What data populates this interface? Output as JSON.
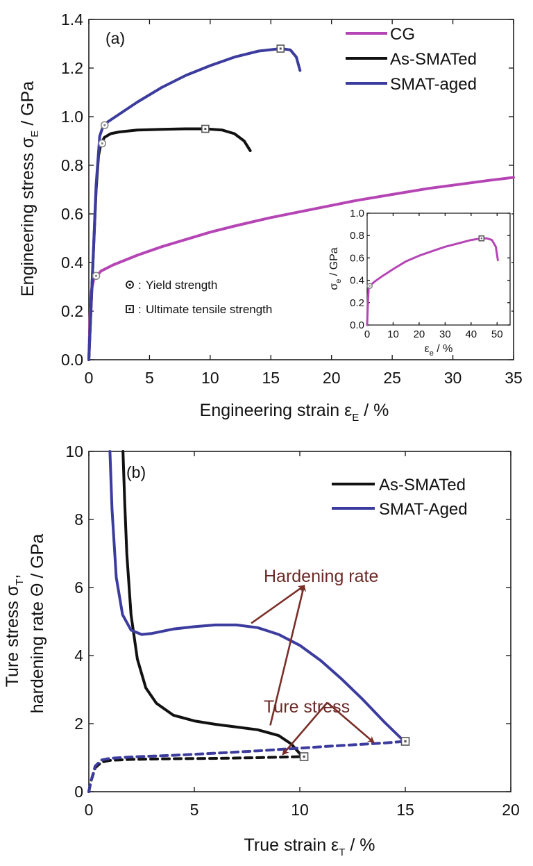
{
  "chart_data": [
    {
      "panel": "(a)",
      "type": "line",
      "xlabel": "Engineering strain ε",
      "xlabel_sub": "E",
      "xlabel_unit": " / %",
      "ylabel": "Engineering stress σ",
      "ylabel_sub": "E",
      "ylabel_unit": " / GPa",
      "xlim": [
        0,
        35
      ],
      "ylim": [
        0,
        1.4
      ],
      "xticks": [
        "0",
        "5",
        "10",
        "15",
        "20",
        "25",
        "30",
        "35"
      ],
      "yticks": [
        "0.0",
        "0.2",
        "0.4",
        "0.6",
        "0.8",
        "1.0",
        "1.2",
        "1.4"
      ],
      "legend_position": "top-right",
      "series": [
        {
          "name": "CG",
          "color": "#b545b5",
          "x": [
            0,
            0.1,
            0.2,
            0.4,
            1,
            2,
            4,
            6,
            8,
            10,
            12,
            15,
            18,
            20,
            22,
            25,
            28,
            30,
            33,
            35
          ],
          "y": [
            0,
            0.18,
            0.28,
            0.33,
            0.365,
            0.39,
            0.43,
            0.465,
            0.495,
            0.525,
            0.55,
            0.585,
            0.615,
            0.635,
            0.655,
            0.68,
            0.705,
            0.718,
            0.738,
            0.75
          ]
        },
        {
          "name": "As-SMATed",
          "color": "#111111",
          "x": [
            0,
            0.3,
            0.6,
            0.8,
            1.0,
            1.3,
            1.8,
            2.5,
            4,
            6,
            8,
            9.6,
            11,
            12,
            12.8,
            13.3
          ],
          "y": [
            0,
            0.35,
            0.7,
            0.84,
            0.89,
            0.915,
            0.93,
            0.937,
            0.945,
            0.948,
            0.95,
            0.95,
            0.945,
            0.93,
            0.9,
            0.86
          ]
        },
        {
          "name": "SMAT-aged",
          "color": "#3c3c9e",
          "x": [
            0,
            0.3,
            0.6,
            0.9,
            1.2,
            1.6,
            2.5,
            4,
            6,
            8,
            10,
            12,
            14,
            15.8,
            16.6,
            17.1,
            17.4
          ],
          "y": [
            0,
            0.35,
            0.72,
            0.92,
            0.965,
            0.98,
            1.01,
            1.06,
            1.12,
            1.17,
            1.21,
            1.245,
            1.27,
            1.28,
            1.275,
            1.245,
            1.19
          ]
        }
      ],
      "markers": [
        {
          "series": "CG",
          "kind": "yield",
          "x": 0.6,
          "y": 0.345
        },
        {
          "series": "As-SMATed",
          "kind": "yield",
          "x": 1.1,
          "y": 0.89
        },
        {
          "series": "SMAT-aged",
          "kind": "yield",
          "x": 1.3,
          "y": 0.965
        },
        {
          "series": "As-SMATed",
          "kind": "uts",
          "x": 9.6,
          "y": 0.95
        },
        {
          "series": "SMAT-aged",
          "kind": "uts",
          "x": 15.8,
          "y": 1.28
        }
      ],
      "marker_legend": [
        {
          "kind": "yield",
          "label": "Yield strength"
        },
        {
          "kind": "uts",
          "label": "Ultimate tensile strength"
        }
      ],
      "inset": {
        "xlabel": "ε",
        "xlabel_sub": "e",
        "xlabel_unit": " / %",
        "ylabel": "σ",
        "ylabel_sub": "e",
        "ylabel_unit": " / GPa",
        "xlim": [
          0,
          55
        ],
        "ylim": [
          0,
          1.0
        ],
        "xticks": [
          "0",
          "10",
          "20",
          "30",
          "40",
          "50"
        ],
        "yticks": [
          "0.0",
          "0.2",
          "0.4",
          "0.6",
          "0.8",
          "1.0"
        ],
        "series": [
          {
            "name": "CG",
            "color": "#b545b5",
            "x": [
              0,
              0.3,
              0.6,
              1,
              3,
              6,
              10,
              15,
              20,
              25,
              30,
              35,
              40,
              44,
              46,
              48,
              49.5,
              50.3
            ],
            "y": [
              0,
              0.2,
              0.33,
              0.35,
              0.39,
              0.44,
              0.5,
              0.57,
              0.62,
              0.66,
              0.7,
              0.73,
              0.76,
              0.775,
              0.775,
              0.76,
              0.7,
              0.58
            ]
          }
        ],
        "markers": [
          {
            "kind": "yield",
            "x": 1,
            "y": 0.35
          },
          {
            "kind": "uts",
            "x": 44,
            "y": 0.775
          }
        ]
      }
    },
    {
      "panel": "(b)",
      "type": "line",
      "xlabel": "True strain ε",
      "xlabel_sub": "T",
      "xlabel_unit": " / %",
      "ylabel_line1": "Ture stress σ",
      "ylabel_line1_sub": "T",
      "ylabel_line1_suffix": ",",
      "ylabel_line2": "hardening rate Θ / GPa",
      "xlim": [
        0,
        20
      ],
      "ylim": [
        0,
        10
      ],
      "xticks": [
        "0",
        "5",
        "10",
        "15",
        "20"
      ],
      "yticks": [
        "0",
        "2",
        "4",
        "6",
        "8",
        "10"
      ],
      "legend_position": "top-right",
      "series": [
        {
          "name": "As-SMATed",
          "color": "#111111",
          "style": "solid",
          "quantity": "hardening rate",
          "x": [
            1.62,
            1.7,
            1.8,
            2.0,
            2.3,
            2.7,
            3.2,
            4,
            5,
            6,
            7,
            8,
            9,
            9.6,
            10.1
          ],
          "y": [
            10,
            8.5,
            7,
            5.2,
            3.9,
            3.05,
            2.6,
            2.25,
            2.08,
            1.98,
            1.9,
            1.82,
            1.65,
            1.4,
            1.05
          ]
        },
        {
          "name": "SMAT-Aged",
          "color": "#3c3c9e",
          "style": "solid",
          "quantity": "hardening rate",
          "x": [
            1.0,
            1.1,
            1.3,
            1.6,
            2.0,
            2.5,
            3,
            4,
            5,
            6,
            7,
            8,
            9,
            10,
            11,
            12,
            13,
            14,
            15
          ],
          "y": [
            10,
            8.3,
            6.3,
            5.2,
            4.75,
            4.62,
            4.65,
            4.78,
            4.85,
            4.9,
            4.9,
            4.82,
            4.62,
            4.3,
            3.85,
            3.3,
            2.7,
            2.05,
            1.45
          ]
        },
        {
          "name": "",
          "color": "#111111",
          "style": "dashed",
          "quantity": "true stress",
          "x": [
            0,
            0.1,
            0.3,
            0.6,
            1.0,
            2,
            4,
            6,
            8,
            10.2
          ],
          "y": [
            0,
            0.3,
            0.7,
            0.87,
            0.92,
            0.95,
            0.97,
            0.98,
            1.0,
            1.03
          ]
        },
        {
          "name": "",
          "color": "#3c3c9e",
          "style": "dashed",
          "quantity": "true stress",
          "x": [
            0,
            0.1,
            0.3,
            0.6,
            1.0,
            2,
            4,
            6,
            8,
            10,
            12,
            14,
            15
          ],
          "y": [
            0,
            0.3,
            0.75,
            0.93,
            0.98,
            1.02,
            1.07,
            1.13,
            1.2,
            1.28,
            1.36,
            1.43,
            1.48
          ]
        }
      ],
      "markers": [
        {
          "series": "As-SMATed",
          "kind": "uts",
          "x": 10.2,
          "y": 1.03
        },
        {
          "series": "SMAT-Aged",
          "kind": "uts",
          "x": 15,
          "y": 1.48
        }
      ],
      "annotations": [
        {
          "text": "Hardening rate",
          "arrows": [
            {
              "from": [
                10.3,
                6.05
              ],
              "to": [
                15.8,
                6.05
              ]
            },
            {
              "from": [
                7.7,
                4.95
              ],
              "to": [
                10.2,
                6.05
              ]
            },
            {
              "from": [
                8.6,
                1.95
              ],
              "to": [
                10.2,
                6.05
              ]
            }
          ]
        },
        {
          "text": "Ture stress",
          "arrows": [
            {
              "from": [
                9.6,
                2.62
              ],
              "to": [
                14.1,
                2.62
              ]
            },
            {
              "from": [
                11.3,
                2.62
              ],
              "to": [
                9.2,
                1.1
              ]
            },
            {
              "from": [
                11.3,
                2.62
              ],
              "to": [
                13.5,
                1.45
              ]
            }
          ]
        }
      ]
    }
  ]
}
